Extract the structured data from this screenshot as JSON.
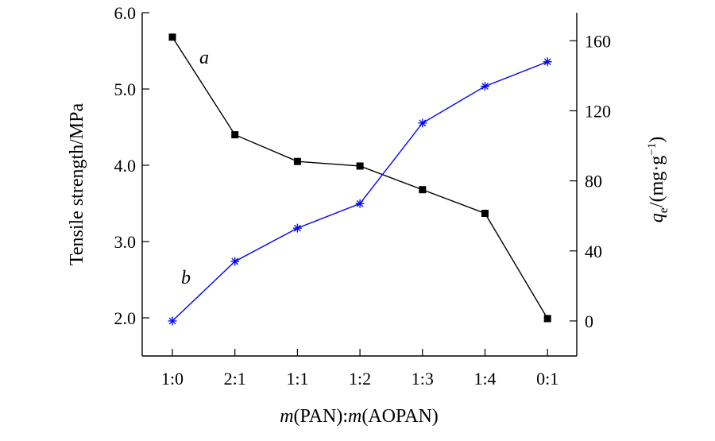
{
  "chart_data": {
    "type": "line",
    "categories": [
      "1:0",
      "2:1",
      "1:1",
      "1:2",
      "1:3",
      "1:4",
      "0:1"
    ],
    "xlabel": {
      "part1": "m",
      "part2": "(PAN):",
      "part3": "m",
      "part4": "(AOPAN)"
    },
    "y_left": {
      "label": "Tensile strength/MPa",
      "ylim": [
        1.5,
        6.0
      ],
      "ticks": [
        "2.0",
        "3.0",
        "4.0",
        "5.0",
        "6.0"
      ]
    },
    "y_right": {
      "label": {
        "q": "q",
        "sub": "e",
        "unit": "/(mg·g",
        "sup": "−1",
        "close": ")"
      },
      "ylim": [
        -20,
        176
      ],
      "ticks": [
        "0",
        "40",
        "80",
        "120",
        "160"
      ]
    },
    "series": [
      {
        "name": "a",
        "axis": "left",
        "color": "#000000",
        "marker": "square",
        "values": [
          5.68,
          4.4,
          4.05,
          3.99,
          3.68,
          3.37,
          1.99
        ]
      },
      {
        "name": "b",
        "axis": "right",
        "color": "#0000ff",
        "marker": "asterisk",
        "values": [
          0,
          34,
          53,
          67,
          113,
          134,
          148
        ]
      }
    ],
    "grid": false
  }
}
